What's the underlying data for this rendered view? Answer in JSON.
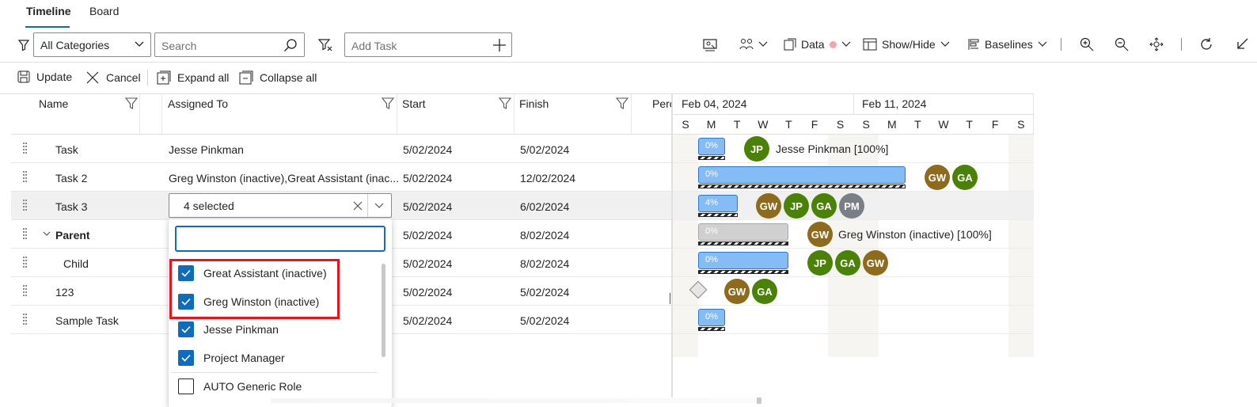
{
  "tabs": [
    {
      "label": "Timeline"
    },
    {
      "label": "Board"
    }
  ],
  "toolbar": {
    "category_value": "All Categories",
    "search_placeholder": "Search",
    "add_task_placeholder": "Add Task",
    "data_label": "Data",
    "show_hide_label": "Show/Hide",
    "baselines_label": "Baselines",
    "data_dot_color": "#f4a3ab"
  },
  "commands": {
    "update": "Update",
    "cancel": "Cancel",
    "expand_all": "Expand all",
    "collapse_all": "Collapse all"
  },
  "grid": {
    "columns": [
      "Name",
      "Assigned To",
      "Start",
      "Finish",
      "Perc"
    ],
    "rows": [
      {
        "name": "Task",
        "assigned": "Jesse Pinkman",
        "start": "5/02/2024",
        "finish": "5/02/2024"
      },
      {
        "name": "Task 2",
        "assigned": "Greg Winston (inactive),Great Assistant (inac...",
        "start": "5/02/2024",
        "finish": "12/02/2024"
      },
      {
        "name": "Task 3",
        "assigned": "",
        "start": "5/02/2024",
        "finish": "6/02/2024"
      },
      {
        "name": "Parent",
        "assigned": "",
        "start": "5/02/2024",
        "finish": "8/02/2024"
      },
      {
        "name": "Child",
        "assigned": "",
        "start": "5/02/2024",
        "finish": "8/02/2024"
      },
      {
        "name": "123",
        "assigned": "",
        "start": "5/02/2024",
        "finish": "5/02/2024"
      },
      {
        "name": "Sample Task",
        "assigned": "",
        "start": "5/02/2024",
        "finish": "5/02/2024"
      }
    ]
  },
  "dropdown": {
    "value": "4 selected",
    "options": [
      {
        "label": "Great Assistant (inactive)",
        "checked": true
      },
      {
        "label": "Greg Winston (inactive)",
        "checked": true
      },
      {
        "label": "Jesse Pinkman",
        "checked": true
      },
      {
        "label": "Project Manager",
        "checked": true
      },
      {
        "label": "AUTO Generic Role",
        "checked": false
      }
    ]
  },
  "gantt": {
    "weeks": [
      "Feb 04, 2024",
      "Feb 11, 2024"
    ],
    "days": [
      "S",
      "M",
      "T",
      "W",
      "T",
      "F",
      "S",
      "S",
      "M",
      "T",
      "W",
      "T",
      "F",
      "S"
    ],
    "bars": [
      {
        "percent": "0%",
        "label": "Jesse Pinkman [100%]",
        "avatars": [
          "JP"
        ]
      },
      {
        "percent": "0%",
        "label": "",
        "avatars": [
          "GW",
          "GA"
        ]
      },
      {
        "percent": "4%",
        "label": "",
        "avatars": [
          "GW",
          "JP",
          "GA",
          "PM"
        ]
      },
      {
        "percent": "0%",
        "label": "Greg Winston (inactive) [100%]",
        "avatars": [
          "GW"
        ]
      },
      {
        "percent": "0%",
        "label": "",
        "avatars": [
          "JP",
          "GA",
          "GW"
        ]
      },
      {
        "percent": "",
        "label": "",
        "avatars": [
          "GW",
          "GA"
        ]
      },
      {
        "percent": "0%",
        "label": "",
        "avatars": []
      }
    ],
    "avatar_colors": {
      "JP": "#498205",
      "GA": "#498205",
      "GW": "#8e6b1c",
      "PM": "#7a7f87"
    }
  }
}
